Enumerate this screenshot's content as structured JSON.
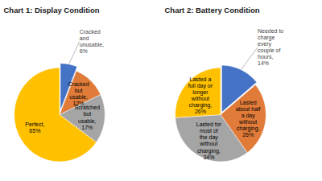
{
  "chart_data": [
    {
      "type": "pie",
      "title": "Chart 1: Display Condition",
      "categories": [
        "Cracked\nand\nunusable,\n6%",
        "Cracked\nbut\nusable,\n12%",
        "Scratched\nbut\nusable,\n17%",
        "Perfect,\n65%"
      ],
      "values": [
        6,
        12,
        17,
        65
      ],
      "colors": [
        "#4472C4",
        "#E07B39",
        "#A5A5A5",
        "#FFC000"
      ],
      "data_labels": true
    },
    {
      "type": "pie",
      "title": "Chart 2: Battery Condition",
      "categories": [
        "Needed to\ncharge\nevery\ncouple of\nhours,\n14%",
        "Lasted\nabout half\na day\nwithout\ncharging,\n26%",
        "Lasted for\nmost of\nthe day\nwithout\ncharging,\n34%",
        "Lasted a\nfull day or\nlonger\nwithout\ncharging,\n26%"
      ],
      "values": [
        14,
        26,
        34,
        26
      ],
      "colors": [
        "#4472C4",
        "#E07B39",
        "#A5A5A5",
        "#FFC000"
      ],
      "data_labels": true
    }
  ]
}
